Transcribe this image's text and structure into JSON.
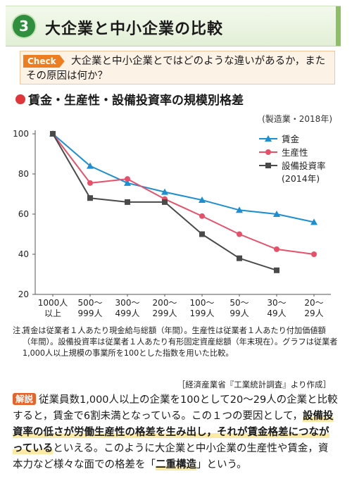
{
  "header": {
    "number": "3",
    "title": "大企業と中小企業の比較"
  },
  "check": {
    "badge": "Check",
    "question": "大企業と中小企業とではどのような違いがあるか，またその原因は何か？"
  },
  "section": {
    "title": "賃金・生産性・設備投資率の規模別格差"
  },
  "accent_colors": {
    "wage": "#1b8fd1",
    "productivity": "#e8506a",
    "investment": "#4a4a4a",
    "title_dot": "#e0363b"
  },
  "chart_data": {
    "type": "line",
    "subtitle": "(製造業・2018年)",
    "categories": [
      [
        "1000人",
        "以上"
      ],
      [
        "500～",
        "999人"
      ],
      [
        "300～",
        "499人"
      ],
      [
        "200～",
        "299人"
      ],
      [
        "100～",
        "199人"
      ],
      [
        "50～",
        "99人"
      ],
      [
        "30～",
        "49人"
      ],
      [
        "20～",
        "29人"
      ]
    ],
    "ylim": [
      20,
      100
    ],
    "yticks": [
      20,
      40,
      60,
      80,
      100
    ],
    "grid": false,
    "legend_position": "top-right",
    "series": [
      {
        "name": "賃金",
        "marker": "triangle",
        "values": [
          100,
          84,
          75.5,
          71,
          67,
          62,
          60,
          56
        ]
      },
      {
        "name": "生産性",
        "marker": "circle",
        "values": [
          100,
          75.5,
          77.5,
          67.5,
          59,
          50,
          42.5,
          40
        ]
      },
      {
        "name": "設備投資率",
        "name_line2": "(2014年)",
        "marker": "square",
        "values": [
          100,
          68,
          66,
          66,
          50,
          38,
          32,
          null
        ]
      }
    ]
  },
  "notes": {
    "label": "注．",
    "text": "賃金は従業者１人あたり現金給与総額（年間）。生産性は従業者１人あたり付加価値額（年間）。設備投資率は従業者１人あたり有形固定資産総額（年末現在）。グラフは従業者1,000人以上規模の事業所を100とした指数を用いた比較。"
  },
  "source": "［経済産業省『工業統計調査』より作成］",
  "explanation": {
    "badge": "解説",
    "text1": "従業員数1,000人以上の企業を100として20～29人の企業と比較すると，賃金で6割未満となっている。この１つの要因として，",
    "highlight": "設備投資率の低さが労働生産性の格差を生み出し，それが賃金格差につながっている",
    "text2": "といえる。このように大企業と中小企業の生産性や賃金，資本力など様々な面での格差を「",
    "term": "二重構造",
    "text3": "」という。"
  }
}
